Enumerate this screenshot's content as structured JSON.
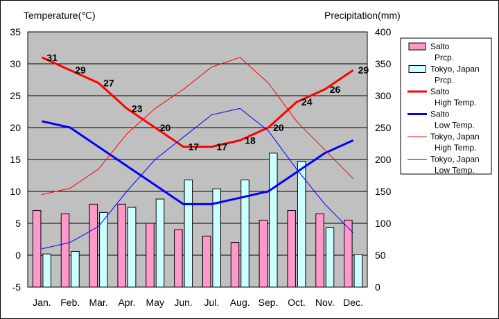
{
  "chart_data": {
    "type": "bar",
    "left_axis_title": "Temperature(℃)",
    "right_axis_title": "Precipitation(mm)",
    "categories": [
      "Jan.",
      "Feb.",
      "Mar.",
      "Apr.",
      "May",
      "Jun.",
      "Jul.",
      "Aug.",
      "Sep.",
      "Oct.",
      "Nov.",
      "Dec."
    ],
    "left_ylim": [
      -5,
      35
    ],
    "left_ticks": [
      -5,
      0,
      5,
      10,
      15,
      20,
      25,
      30,
      35
    ],
    "right_ylim": [
      0,
      400
    ],
    "right_ticks": [
      0,
      50,
      100,
      150,
      200,
      250,
      300,
      350,
      400
    ],
    "grid": true,
    "plot_background": "#c0c0c0",
    "legend_position": "right",
    "bars": [
      {
        "legend": [
          "Salto",
          "Prcp."
        ],
        "color": "#ff99cc",
        "axis": "right",
        "values": [
          120,
          115,
          130,
          130,
          100,
          90,
          80,
          70,
          105,
          120,
          115,
          105
        ]
      },
      {
        "legend": [
          "Tokyo, Japan",
          "Prcp."
        ],
        "color": "#ccffff",
        "axis": "right",
        "values": [
          52,
          56,
          117,
          125,
          138,
          168,
          154,
          168,
          210,
          197,
          93,
          51
        ]
      }
    ],
    "lines": [
      {
        "legend": [
          "Salto",
          "High Temp."
        ],
        "color": "#ff0000",
        "width": 3,
        "values": [
          31,
          29,
          27,
          23,
          20,
          17,
          17,
          18,
          20,
          24,
          26,
          29
        ],
        "labels": [
          "31",
          "29",
          "27",
          "23",
          "20",
          "17",
          "17",
          "18",
          "20",
          "24",
          "26",
          "29"
        ]
      },
      {
        "legend": [
          "Salto",
          "Low Temp."
        ],
        "color": "#0000ff",
        "width": 3,
        "values": [
          21,
          20,
          17,
          14,
          11,
          8,
          8,
          9,
          10,
          13,
          16,
          18
        ]
      },
      {
        "legend": [
          "Tokyo, Japan",
          "High Temp."
        ],
        "color": "#ff0000",
        "width": 1,
        "values": [
          9.5,
          10.5,
          13.5,
          19,
          23,
          26,
          29.5,
          31,
          27,
          21,
          16.5,
          12
        ]
      },
      {
        "legend": [
          "Tokyo, Japan",
          "Low Temp."
        ],
        "color": "#0000ff",
        "width": 1,
        "values": [
          1,
          2,
          4.5,
          10,
          15,
          18.5,
          22,
          23,
          19.5,
          13.5,
          8,
          3.5
        ]
      }
    ]
  }
}
